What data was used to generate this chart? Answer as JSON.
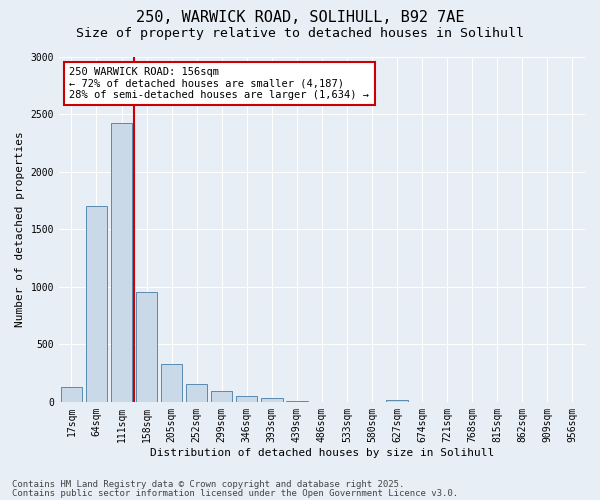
{
  "title_line1": "250, WARWICK ROAD, SOLIHULL, B92 7AE",
  "title_line2": "Size of property relative to detached houses in Solihull",
  "xlabel": "Distribution of detached houses by size in Solihull",
  "ylabel": "Number of detached properties",
  "categories": [
    "17sqm",
    "64sqm",
    "111sqm",
    "158sqm",
    "205sqm",
    "252sqm",
    "299sqm",
    "346sqm",
    "393sqm",
    "439sqm",
    "486sqm",
    "533sqm",
    "580sqm",
    "627sqm",
    "674sqm",
    "721sqm",
    "768sqm",
    "815sqm",
    "862sqm",
    "909sqm",
    "956sqm"
  ],
  "values": [
    130,
    1700,
    2420,
    950,
    330,
    155,
    90,
    55,
    30,
    10,
    0,
    0,
    0,
    20,
    0,
    0,
    0,
    0,
    0,
    0,
    0
  ],
  "bar_color": "#c9d9e8",
  "bar_edge_color": "#5a8ab0",
  "vline_color": "#cc0000",
  "vline_position": 2.5,
  "annotation_box_text": "250 WARWICK ROAD: 156sqm\n← 72% of detached houses are smaller (4,187)\n28% of semi-detached houses are larger (1,634) →",
  "annotation_box_color": "#cc0000",
  "annotation_bg_color": "#ffffff",
  "ylim": [
    0,
    3000
  ],
  "yticks": [
    0,
    500,
    1000,
    1500,
    2000,
    2500,
    3000
  ],
  "bg_color": "#e8eef5",
  "plot_bg_color": "#e8eef5",
  "footer_line1": "Contains HM Land Registry data © Crown copyright and database right 2025.",
  "footer_line2": "Contains public sector information licensed under the Open Government Licence v3.0.",
  "title_fontsize": 11,
  "subtitle_fontsize": 9.5,
  "axis_label_fontsize": 8,
  "tick_fontsize": 7,
  "annotation_fontsize": 7.5,
  "footer_fontsize": 6.5
}
